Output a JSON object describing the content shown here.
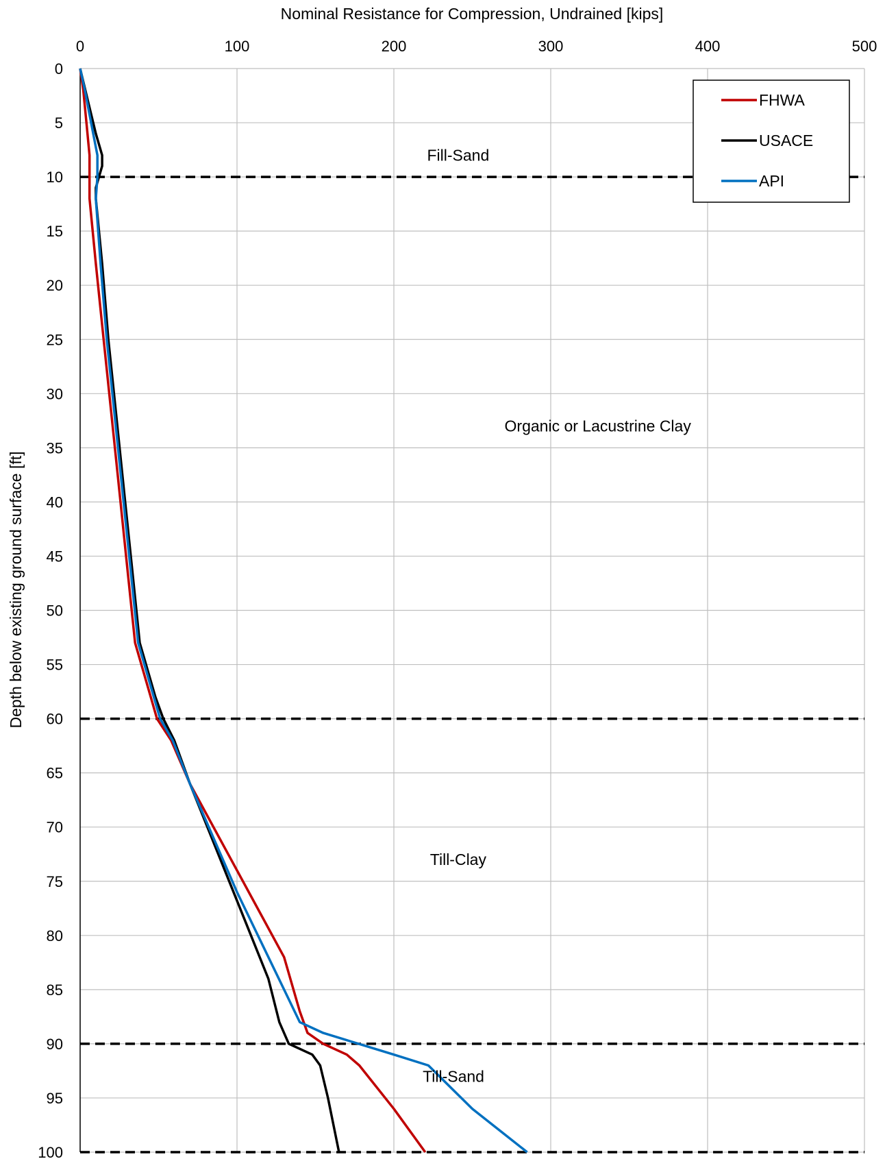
{
  "chart_data": {
    "type": "line",
    "title": "",
    "xlabel": "Nominal Resistance for Compression, Undrained [kips]",
    "ylabel": "Depth below existing ground surface [ft]",
    "xlim": [
      0,
      500
    ],
    "ylim": [
      0,
      100
    ],
    "y_inverted": true,
    "x_axis_position": "top",
    "x_ticks": [
      0,
      100,
      200,
      300,
      400,
      500
    ],
    "y_ticks": [
      0,
      5,
      10,
      15,
      20,
      25,
      30,
      35,
      40,
      45,
      50,
      55,
      60,
      65,
      70,
      75,
      80,
      85,
      90,
      95,
      100
    ],
    "grid": true,
    "legend_position": "top-right",
    "series": [
      {
        "name": "FHWA",
        "color": "#c00000",
        "points": [
          [
            0,
            0
          ],
          [
            2,
            2
          ],
          [
            4,
            5
          ],
          [
            6,
            8
          ],
          [
            6,
            10
          ],
          [
            6,
            12
          ],
          [
            10,
            18
          ],
          [
            15,
            25
          ],
          [
            20,
            32
          ],
          [
            25,
            39
          ],
          [
            30,
            46
          ],
          [
            35,
            53
          ],
          [
            45,
            58
          ],
          [
            49,
            60
          ],
          [
            58,
            62
          ],
          [
            70,
            66
          ],
          [
            100,
            74
          ],
          [
            130,
            82
          ],
          [
            140,
            87
          ],
          [
            145,
            89
          ],
          [
            155,
            90
          ],
          [
            170,
            91
          ],
          [
            178,
            92
          ],
          [
            200,
            96
          ],
          [
            220,
            100
          ]
        ]
      },
      {
        "name": "USACE",
        "color": "#000000",
        "points": [
          [
            0,
            0
          ],
          [
            5,
            3
          ],
          [
            10,
            6
          ],
          [
            14,
            8
          ],
          [
            14,
            9
          ],
          [
            12,
            10
          ],
          [
            10,
            11
          ],
          [
            10,
            12
          ],
          [
            14,
            18
          ],
          [
            18,
            25
          ],
          [
            23,
            32
          ],
          [
            28,
            39
          ],
          [
            33,
            46
          ],
          [
            38,
            53
          ],
          [
            48,
            58
          ],
          [
            53,
            60
          ],
          [
            60,
            62
          ],
          [
            70,
            66
          ],
          [
            95,
            75
          ],
          [
            120,
            84
          ],
          [
            127,
            88
          ],
          [
            133,
            90
          ],
          [
            148,
            91
          ],
          [
            153,
            92
          ],
          [
            158,
            95
          ],
          [
            165,
            100
          ]
        ]
      },
      {
        "name": "API",
        "color": "#0070c0",
        "points": [
          [
            0,
            0
          ],
          [
            3,
            2
          ],
          [
            7,
            5
          ],
          [
            11,
            8
          ],
          [
            11,
            10
          ],
          [
            10,
            12
          ],
          [
            13,
            18
          ],
          [
            17,
            25
          ],
          [
            22,
            32
          ],
          [
            27,
            39
          ],
          [
            32,
            46
          ],
          [
            37,
            53
          ],
          [
            47,
            58
          ],
          [
            51,
            60
          ],
          [
            59,
            62
          ],
          [
            70,
            66
          ],
          [
            100,
            76
          ],
          [
            130,
            85
          ],
          [
            140,
            88
          ],
          [
            155,
            89
          ],
          [
            200,
            91
          ],
          [
            222,
            92
          ],
          [
            250,
            96
          ],
          [
            285,
            100
          ]
        ]
      }
    ],
    "boundaries": [
      10,
      60,
      90,
      100
    ],
    "annotations": [
      "Fill-Sand",
      "Organic or Lacustrine Clay",
      "Till-Clay",
      "Till-Sand"
    ]
  }
}
